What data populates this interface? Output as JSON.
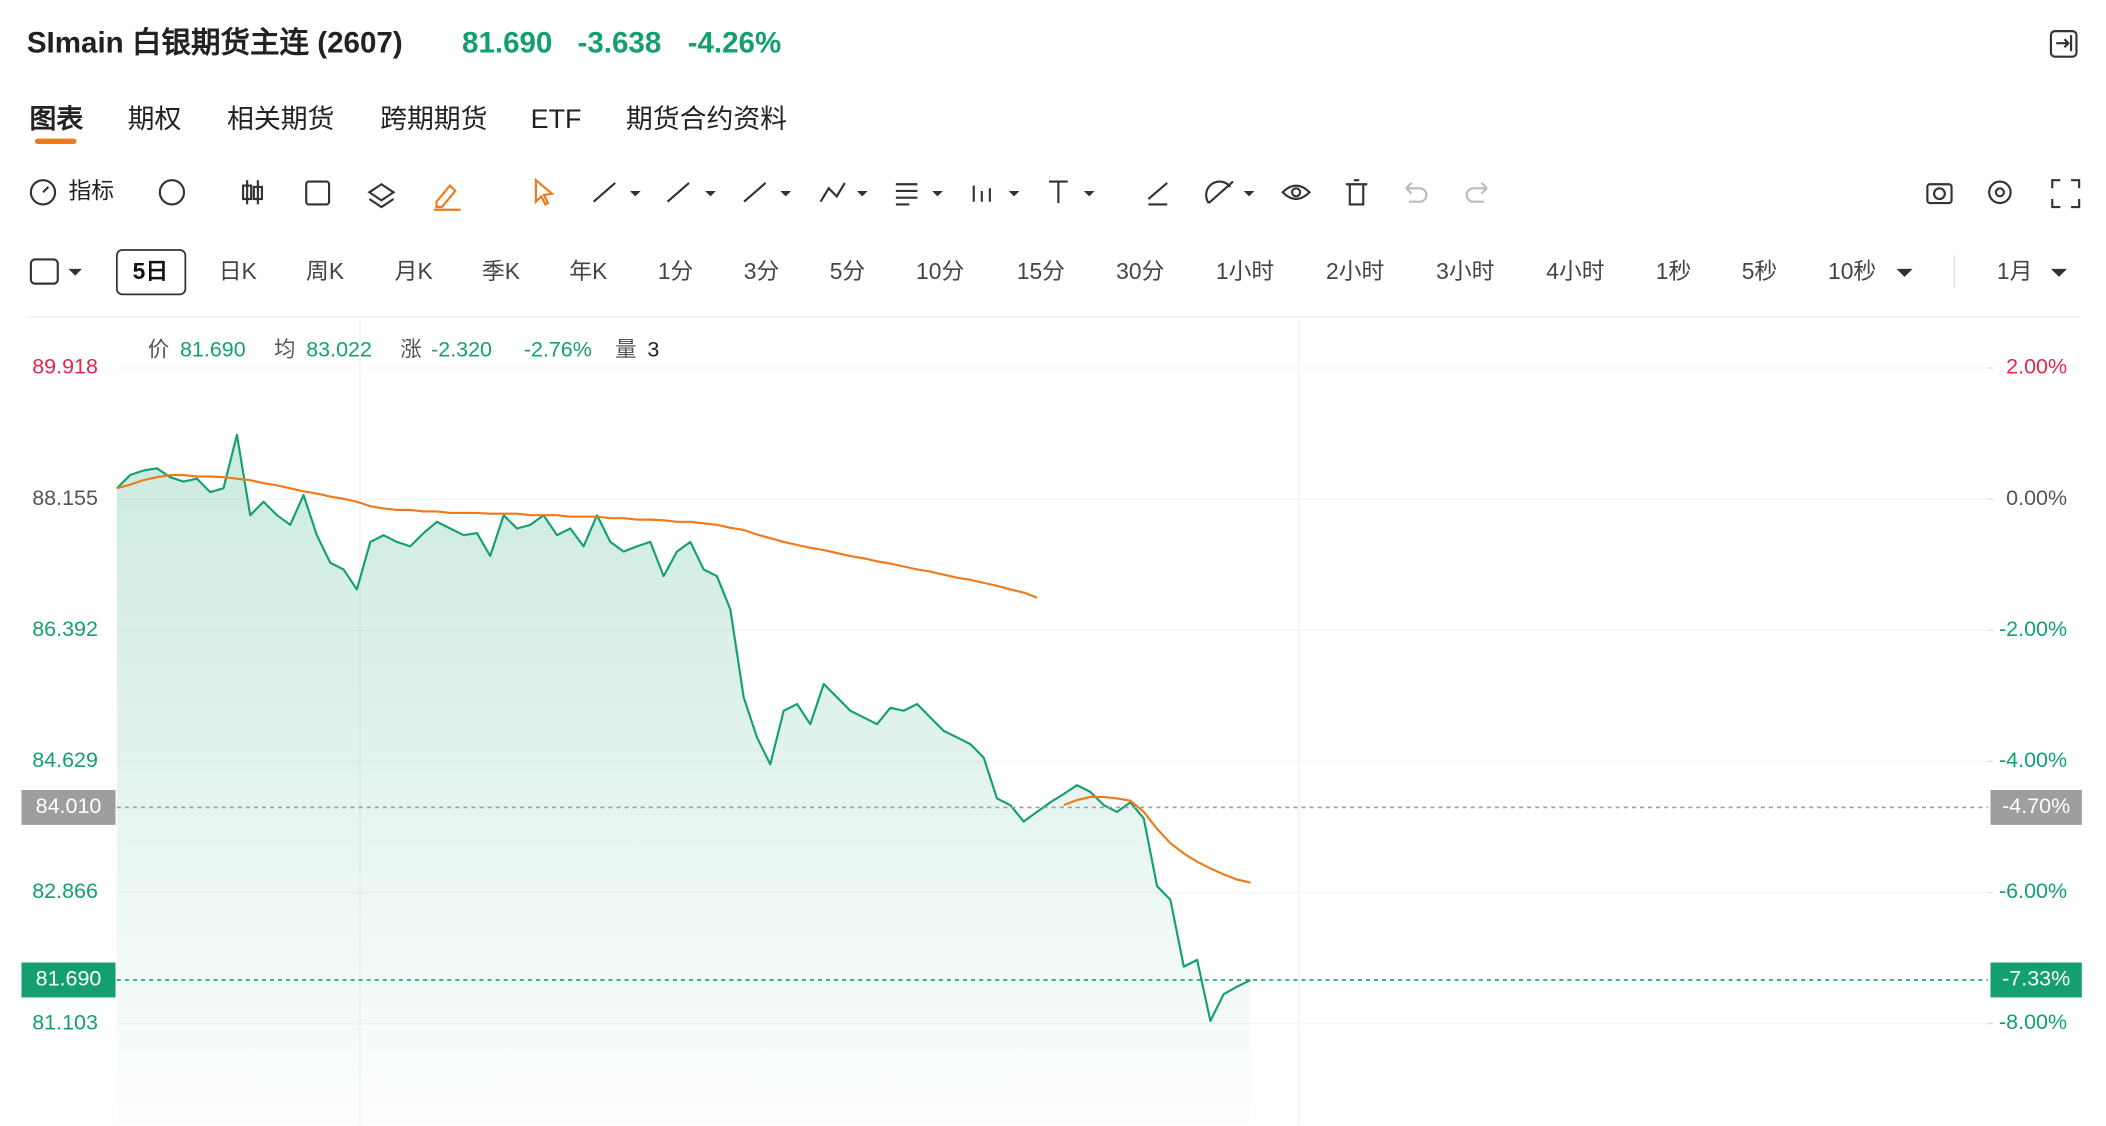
{
  "header": {
    "title": "SImain 白银期货主连 (2607)",
    "price": "81.690",
    "change": "-3.638",
    "change_pct": "-4.26%"
  },
  "tabs": [
    "图表",
    "期权",
    "相关期货",
    "跨期期货",
    "ETF",
    "期货合约资料"
  ],
  "toolbar": {
    "indicators": "指标"
  },
  "timeframes": [
    "5日",
    "日K",
    "周K",
    "月K",
    "季K",
    "年K",
    "1分",
    "3分",
    "5分",
    "10分",
    "15分",
    "30分",
    "1小时",
    "2小时",
    "3小时",
    "4小时",
    "1秒",
    "5秒",
    "10秒",
    "1月"
  ],
  "info": {
    "price_label": "价",
    "price": "81.690",
    "avg_label": "均",
    "avg": "83.022",
    "change_label": "涨",
    "change": "-2.320",
    "change_pct": "-2.76%",
    "volume_label": "量",
    "volume": "3"
  },
  "chart_data": {
    "type": "line",
    "ylim": [
      79.73,
      90.565
    ],
    "yticks": [
      89.918,
      88.155,
      86.392,
      84.629,
      82.866,
      81.103
    ],
    "y2lim": [
      -9.56,
      2.734
    ],
    "y2ticks": [
      {
        "value": 2,
        "label": "2.00%"
      },
      {
        "value": 0,
        "label": "0.00%"
      },
      {
        "value": -2,
        "label": "-2.00%"
      },
      {
        "value": -4,
        "label": "-4.00%"
      },
      {
        "value": -6,
        "label": "-6.00%"
      },
      {
        "value": -8,
        "label": "-8.00%"
      }
    ],
    "reference_lines": [
      {
        "value": {
          "value": 84.01,
          "label": "84.010"
        },
        "pct": "-4.70%",
        "color": "#9e9e9e"
      },
      {
        "value": {
          "value": 81.69,
          "label": "81.690"
        },
        "pct": "-7.33%",
        "color": "#14a06e"
      }
    ],
    "up_color": "#e0294a",
    "down_color": "#14a06e",
    "flat_color": "#555555",
    "series": [
      {
        "color": "#14a06e",
        "area": true,
        "values": [
          88.3,
          88.48,
          88.54,
          88.57,
          88.45,
          88.39,
          88.43,
          88.25,
          88.3,
          89.02,
          87.94,
          88.12,
          87.94,
          87.81,
          88.21,
          87.67,
          87.3,
          87.21,
          86.94,
          87.58,
          87.67,
          87.58,
          87.52,
          87.7,
          87.85,
          87.76,
          87.67,
          87.7,
          87.39,
          87.94,
          87.76,
          87.81,
          87.94,
          87.67,
          87.76,
          87.52,
          87.94,
          87.58,
          87.45,
          87.52,
          87.58,
          87.12,
          87.45,
          87.58,
          87.21,
          87.12,
          86.67,
          85.49,
          84.95,
          84.59,
          85.31,
          85.4,
          85.13,
          85.67,
          85.49,
          85.31,
          85.22,
          85.13,
          85.35,
          85.31,
          85.4,
          85.22,
          85.04,
          84.95,
          84.86,
          84.68,
          84.13,
          84.04,
          83.82,
          83.95,
          84.08,
          84.19,
          84.31,
          84.22,
          84.04,
          83.95,
          84.08,
          83.86,
          82.95,
          82.77,
          81.87,
          81.96,
          81.14,
          81.5,
          81.6,
          81.69
        ]
      },
      {
        "color": "#f07a1a",
        "area": false,
        "values": [
          88.3,
          88.35,
          88.41,
          88.45,
          88.48,
          88.48,
          88.46,
          88.46,
          88.45,
          88.43,
          88.41,
          88.37,
          88.34,
          88.3,
          88.26,
          88.23,
          88.19,
          88.16,
          88.12,
          88.06,
          88.03,
          88.01,
          88.01,
          87.99,
          87.99,
          87.97,
          87.97,
          87.97,
          87.96,
          87.96,
          87.96,
          87.94,
          87.94,
          87.94,
          87.92,
          87.92,
          87.92,
          87.9,
          87.9,
          87.88,
          87.88,
          87.87,
          87.85,
          87.85,
          87.83,
          87.81,
          87.77,
          87.74,
          87.68,
          87.63,
          87.58,
          87.54,
          87.5,
          87.47,
          87.43,
          87.39,
          87.36,
          87.32,
          87.29,
          87.25,
          87.21,
          87.18,
          87.14,
          87.1,
          87.07,
          87.03,
          86.99,
          86.94,
          86.9,
          86.83,
          null,
          84.04,
          84.11,
          84.15,
          84.15,
          84.13,
          84.1,
          83.95,
          83.72,
          83.53,
          83.39,
          83.28,
          83.19,
          83.11,
          83.04,
          83.0
        ]
      }
    ]
  }
}
